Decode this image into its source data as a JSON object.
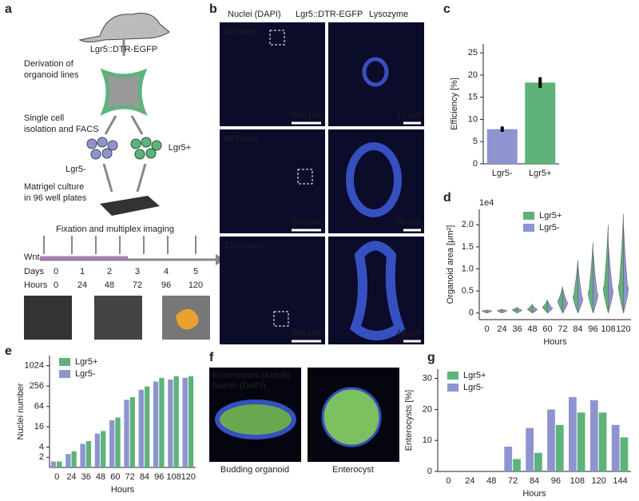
{
  "panel_labels": [
    "a",
    "b",
    "c",
    "d",
    "e",
    "f",
    "g"
  ],
  "diagram": {
    "strain": "Lgr5::DTR-EGFP",
    "steps": [
      [
        "Derivation of",
        "organoid lines"
      ],
      [
        "Single cell",
        "isolation and FACS"
      ],
      [
        "Matrigel culture",
        "in 96 well plates"
      ]
    ],
    "populations": [
      "Lgr5-",
      "Lgr5+"
    ],
    "imaging": "Fixation and multiplex imaging",
    "wnt": "Wnt",
    "days_label": "Days",
    "days": [
      0,
      1,
      2,
      3,
      4,
      5
    ],
    "hours_label": "Hours",
    "hours": [
      0,
      24,
      48,
      72,
      96,
      120
    ]
  },
  "micrographs": {
    "channels": [
      "Nuclei (DAPI)",
      "Lgr5::DTR-EGFP",
      "Lysozyme"
    ],
    "timepoints": [
      "24 hours",
      "84 hours",
      "120 hours"
    ],
    "scale_bars": [
      [
        "500 μm",
        "15 μm"
      ],
      [
        "500 μm",
        "30 μm"
      ],
      [
        "500 μm",
        "40 μm"
      ]
    ]
  },
  "enterocytes": {
    "channels": [
      "Enterocytes (AldoB)",
      "Nuclei (DAPI)"
    ],
    "captions": [
      "Budding organoid",
      "Enterocyst"
    ]
  },
  "chart_data": [
    {
      "type": "bar",
      "ylabel": "Efficiency [%]",
      "categories": [
        "Lgr5-",
        "Lgr5+"
      ],
      "values": [
        7.8,
        18.3
      ],
      "errors": [
        0.6,
        1.2
      ],
      "colors": [
        "#8e94d0",
        "#5db37a"
      ],
      "ylim": [
        0,
        27
      ],
      "yticks": [
        0,
        5,
        10,
        15,
        20,
        25
      ]
    },
    {
      "type": "violin",
      "ylabel": "Organoid area [μm²]",
      "offset_label": "1e4",
      "xlabel": "Hours",
      "categories": [
        "0",
        "24",
        "36",
        "48",
        "60",
        "72",
        "84",
        "96",
        "108",
        "120"
      ],
      "series": [
        {
          "name": "Lgr5+",
          "color": "#5db37a",
          "values": [
            0.05,
            0.06,
            0.08,
            0.1,
            0.15,
            0.3,
            0.4,
            0.5,
            0.6,
            0.65
          ],
          "max": [
            0.07,
            0.09,
            0.13,
            0.2,
            0.3,
            0.6,
            1.2,
            1.6,
            2.0,
            2.25
          ]
        },
        {
          "name": "Lgr5-",
          "color": "#8e94d0",
          "values": [
            0.05,
            0.06,
            0.07,
            0.09,
            0.12,
            0.25,
            0.35,
            0.45,
            0.55,
            0.6
          ],
          "max": [
            0.07,
            0.08,
            0.12,
            0.18,
            0.28,
            0.55,
            1.1,
            1.4,
            1.6,
            2.0
          ]
        }
      ],
      "ylim": [
        -0.15,
        2.35
      ],
      "yticks": [
        0,
        0.5,
        {
          "value": 1,
          "label": "1.0"
        },
        1.5,
        {
          "value": 2,
          "label": "2.0"
        }
      ],
      "legend": "upper-left"
    },
    {
      "type": "bar",
      "log_scale": true,
      "ylabel": "Nuclei number",
      "xlabel": "Hours",
      "categories": [
        "0",
        "24",
        "36",
        "48",
        "60",
        "72",
        "84",
        "96",
        "108",
        "120"
      ],
      "series": [
        {
          "name": "Lgr5+",
          "color": "#5db37a",
          "values": [
            1.5,
            3,
            6,
            12,
            30,
            120,
            250,
            450,
            500,
            500
          ]
        },
        {
          "name": "Lgr5-",
          "color": "#8e94d0",
          "values": [
            1.5,
            2.5,
            5,
            10,
            25,
            100,
            200,
            350,
            400,
            450
          ]
        }
      ],
      "ylim": [
        1,
        2048
      ],
      "yticks": [
        2,
        4,
        16,
        64,
        256,
        1024
      ],
      "legend": "upper-left"
    },
    {
      "type": "bar",
      "ylabel": "Enterocysts [%]",
      "xlabel": "Hours",
      "categories": [
        "0",
        "24",
        "48",
        "72",
        "84",
        "96",
        "108",
        "120",
        "144"
      ],
      "series": [
        {
          "name": "Lgr5+",
          "color": "#5db37a",
          "values": [
            0,
            0,
            0,
            4,
            6,
            15,
            19,
            19,
            11
          ]
        },
        {
          "name": "Lgr5-",
          "color": "#8e94d0",
          "values": [
            0,
            0,
            0,
            8,
            14,
            20,
            24,
            23,
            15
          ]
        }
      ],
      "ylim": [
        0,
        33
      ],
      "yticks": [
        0,
        10,
        20,
        30
      ],
      "legend": "upper-left"
    }
  ]
}
